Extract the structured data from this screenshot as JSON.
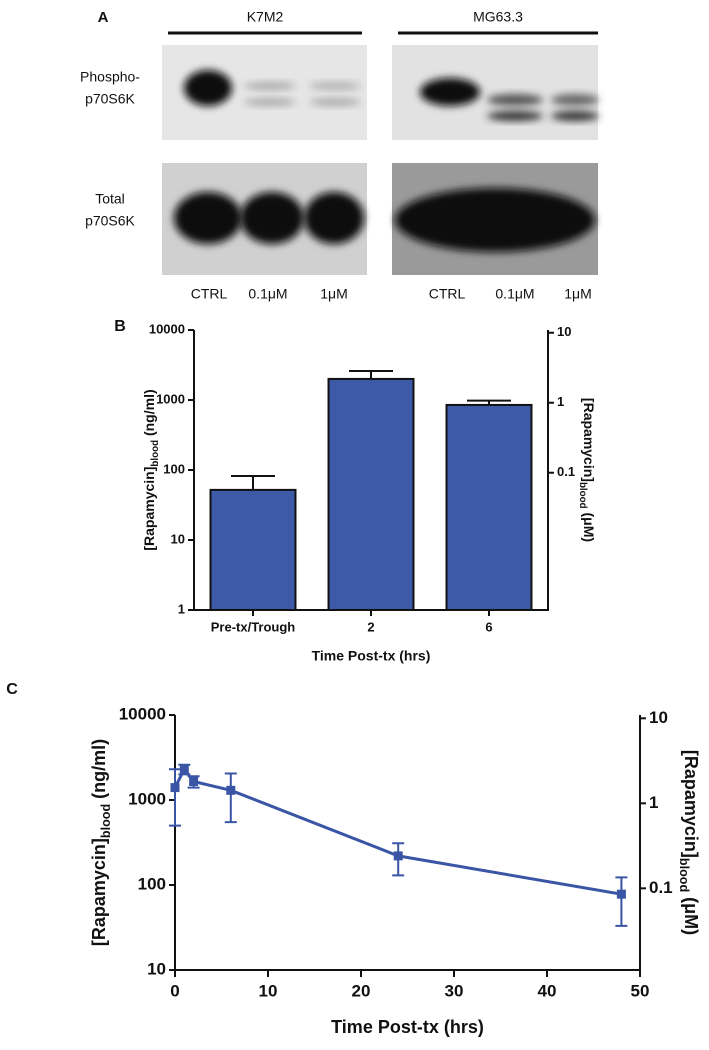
{
  "panel_a": {
    "panel": "A",
    "groups": [
      "K7M2",
      "MG63.3"
    ],
    "rows": [
      [
        "Phospho-",
        "p70S6K"
      ],
      [
        "Total",
        "p70S6K"
      ]
    ],
    "lanes": [
      "CTRL",
      "0.1μM",
      "1μM"
    ]
  },
  "chart_data": [
    {
      "type": "bar",
      "panel": "B",
      "ylabel": [
        "[Rapamycin]",
        "blood",
        " (ng/ml)"
      ],
      "y2label": [
        "[Rapamycin]",
        "blood",
        " (μM)"
      ],
      "xlabel": "Time Post-tx (hrs)",
      "categories": [
        "Pre-tx/Trough",
        "2",
        "6"
      ],
      "values": [
        52,
        2000,
        850
      ],
      "errors": [
        30,
        600,
        130
      ],
      "color": "#3d5aa8",
      "log_y": true,
      "ylim": [
        1,
        10000
      ],
      "yticks": [
        1,
        10,
        100,
        1000,
        10000
      ],
      "y2lim": [
        0.001094,
        10.94
      ],
      "y2ticks": [
        0.1,
        1,
        10
      ]
    },
    {
      "type": "line",
      "panel": "C",
      "ylabel": [
        "[Rapamycin]",
        "blood",
        " (ng/ml)"
      ],
      "y2label": [
        "[Rapamycin]",
        "blood",
        " (μM)"
      ],
      "xlabel": "Time Post-tx (hrs)",
      "x": [
        0,
        1,
        2,
        6,
        24,
        48
      ],
      "values": [
        1400,
        2300,
        1650,
        1300,
        220,
        78
      ],
      "errors": [
        900,
        300,
        250,
        750,
        90,
        45
      ],
      "color": "#3a55a5",
      "log_y": true,
      "xlim": [
        0,
        50
      ],
      "xticks": [
        0,
        10,
        20,
        30,
        40,
        50
      ],
      "ylim": [
        10,
        10000
      ],
      "yticks": [
        10,
        100,
        1000,
        10000
      ],
      "y2lim": [
        0.01094,
        10.94
      ],
      "y2ticks": [
        0.1,
        1,
        10
      ]
    }
  ]
}
